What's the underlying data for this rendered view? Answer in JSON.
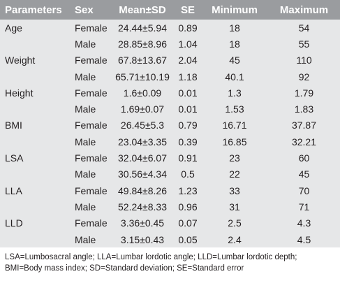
{
  "table": {
    "header": [
      "Parameters",
      "Sex",
      "Mean±SD",
      "SE",
      "Minimum",
      "Maximum"
    ],
    "groups": [
      {
        "parameter": "Age",
        "rows": [
          {
            "sex": "Female",
            "mean_sd": "24.44±5.94",
            "se": "0.89",
            "min": "18",
            "max": "54"
          },
          {
            "sex": "Male",
            "mean_sd": "28.85±8.96",
            "se": "1.04",
            "min": "18",
            "max": "55"
          }
        ]
      },
      {
        "parameter": "Weight",
        "rows": [
          {
            "sex": "Female",
            "mean_sd": "67.8±13.67",
            "se": "2.04",
            "min": "45",
            "max": "110"
          },
          {
            "sex": "Male",
            "mean_sd": "65.71±10.19",
            "se": "1.18",
            "min": "40.1",
            "max": "92"
          }
        ]
      },
      {
        "parameter": "Height",
        "rows": [
          {
            "sex": "Female",
            "mean_sd": "1.6±0.09",
            "se": "0.01",
            "min": "1.3",
            "max": "1.79"
          },
          {
            "sex": "Male",
            "mean_sd": "1.69±0.07",
            "se": "0.01",
            "min": "1.53",
            "max": "1.83"
          }
        ]
      },
      {
        "parameter": "BMI",
        "rows": [
          {
            "sex": "Female",
            "mean_sd": "26.45±5.3",
            "se": "0.79",
            "min": "16.71",
            "max": "37.87"
          },
          {
            "sex": "Male",
            "mean_sd": "23.04±3.35",
            "se": "0.39",
            "min": "16.85",
            "max": "32.21"
          }
        ]
      },
      {
        "parameter": "LSA",
        "rows": [
          {
            "sex": "Female",
            "mean_sd": "32.04±6.07",
            "se": "0.91",
            "min": "23",
            "max": "60"
          },
          {
            "sex": "Male",
            "mean_sd": "30.56±4.34",
            "se": "0.5",
            "min": "22",
            "max": "45"
          }
        ]
      },
      {
        "parameter": "LLA",
        "rows": [
          {
            "sex": "Female",
            "mean_sd": "49.84±8.26",
            "se": "1.23",
            "min": "33",
            "max": "70"
          },
          {
            "sex": "Male",
            "mean_sd": "52.24±8.33",
            "se": "0.96",
            "min": "31",
            "max": "71"
          }
        ]
      },
      {
        "parameter": "LLD",
        "rows": [
          {
            "sex": "Female",
            "mean_sd": "3.36±0.45",
            "se": "0.07",
            "min": "2.5",
            "max": "4.3"
          },
          {
            "sex": "Male",
            "mean_sd": "3.15±0.43",
            "se": "0.05",
            "min": "2.4",
            "max": "4.5"
          }
        ]
      }
    ],
    "footnote": "LSA=Lumbosacral angle; LLA=Lumbar lordotic angle; LLD=Lumbar lordotic depth; BMI=Body mass index; SD=Standard deviation; SE=Standard error"
  }
}
